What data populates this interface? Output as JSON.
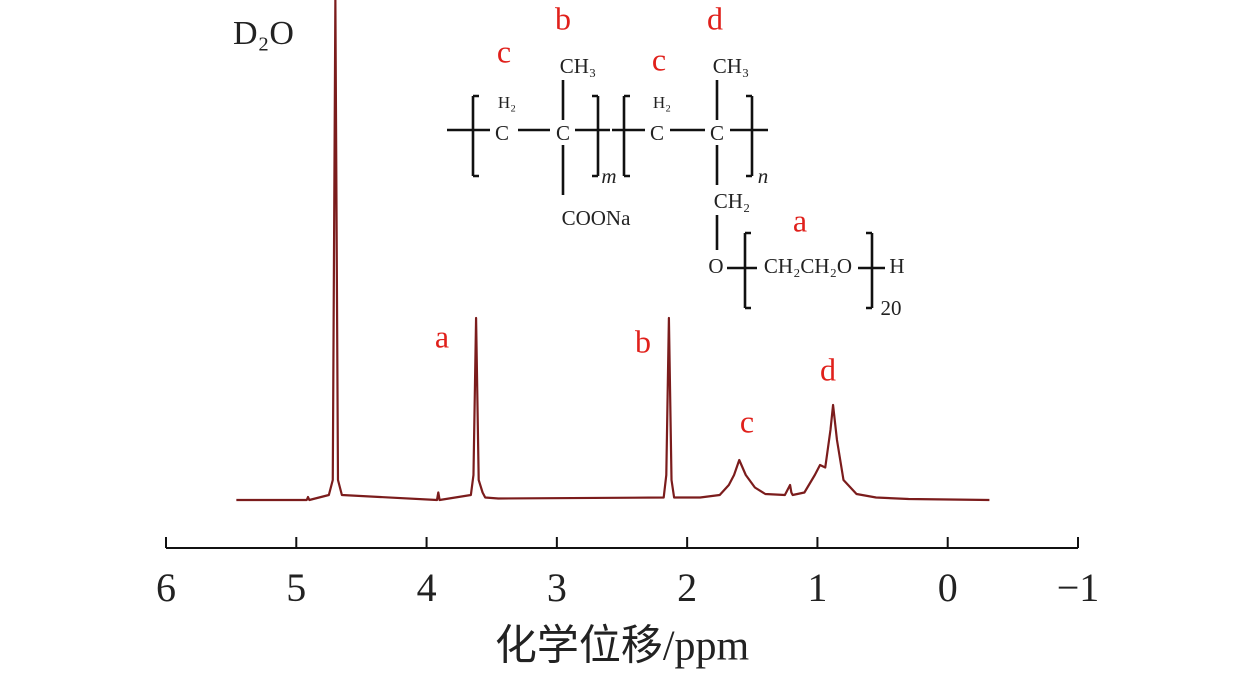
{
  "chart_data": {
    "type": "line",
    "x": [
      5.46,
      4.92,
      4.91,
      4.9,
      4.75,
      4.72,
      4.7,
      4.68,
      4.65,
      3.92,
      3.91,
      3.9,
      3.66,
      3.64,
      3.62,
      3.6,
      3.57,
      3.55,
      3.45,
      2.18,
      2.16,
      2.14,
      2.12,
      2.1,
      1.9,
      1.75,
      1.68,
      1.64,
      1.6,
      1.55,
      1.48,
      1.4,
      1.25,
      1.21,
      1.2,
      1.19,
      1.1,
      1.02,
      0.98,
      0.94,
      0.9,
      0.88,
      0.85,
      0.8,
      0.7,
      0.55,
      0.3,
      -0.32
    ],
    "values": [
      0,
      0,
      0.6,
      0,
      1,
      4,
      100,
      4,
      1,
      0,
      1.5,
      0,
      1,
      5,
      36.4,
      4,
      1.5,
      0.5,
      0.3,
      0.5,
      5,
      36.4,
      4,
      0.5,
      0.5,
      1,
      3,
      5,
      8,
      5,
      2.5,
      1.2,
      1,
      3,
      1.5,
      1,
      1.5,
      5,
      7,
      6.5,
      14,
      19,
      12,
      4,
      1.2,
      0.5,
      0.2,
      0
    ],
    "color": "#7b1c1c",
    "xlim": [
      6,
      -1
    ],
    "xticks": [
      6,
      5,
      4,
      3,
      2,
      1,
      0,
      {
        "value": -1,
        "label": "−1"
      }
    ],
    "xlabel": "化学位移/ppm",
    "annotations": [
      "D₂O",
      "a",
      "b",
      "c",
      "d"
    ],
    "structure": {
      "labels": [
        "c",
        "b",
        "c",
        "d",
        "CH₃",
        "CH₃",
        "H₂",
        "H₂",
        "C",
        "C",
        "C",
        "C",
        "m",
        "n",
        "COONa",
        "CH₂",
        "a",
        "O",
        "CH₂CH₂O",
        "H",
        "20"
      ]
    }
  }
}
